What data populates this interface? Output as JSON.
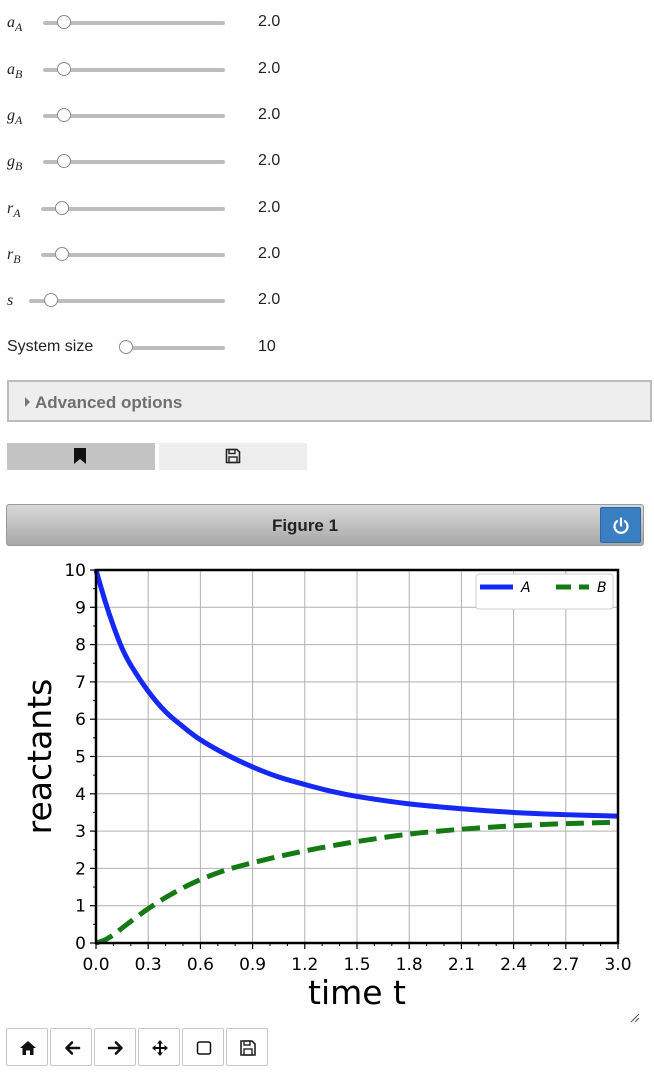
{
  "sliders": [
    {
      "label": "aA",
      "sub": "A",
      "main": "a",
      "value": "2.0",
      "fraction": 0.11
    },
    {
      "label": "aB",
      "sub": "B",
      "main": "a",
      "value": "2.0",
      "fraction": 0.11
    },
    {
      "label": "gA",
      "sub": "A",
      "main": "g",
      "value": "2.0",
      "fraction": 0.11
    },
    {
      "label": "gB",
      "sub": "B",
      "main": "g",
      "value": "2.0",
      "fraction": 0.11
    },
    {
      "label": "rA",
      "sub": "A",
      "main": "r",
      "value": "2.0",
      "fraction": 0.11
    },
    {
      "label": "rB",
      "sub": "B",
      "main": "r",
      "value": "2.0",
      "fraction": 0.11
    },
    {
      "label": "s",
      "sub": "",
      "main": "s",
      "value": "2.0",
      "fraction": 0.11
    },
    {
      "label": "System size",
      "value": "10",
      "fraction": 0.0
    }
  ],
  "advanced": {
    "label": "Advanced options"
  },
  "toggles": [
    {
      "icon": "bookmark-icon",
      "selected": true
    },
    {
      "icon": "save-icon",
      "selected": false
    }
  ],
  "figure": {
    "title": "Figure 1"
  },
  "colors": {
    "A": "#1528f4",
    "B": "#147a14",
    "power": "#3a7fc1"
  },
  "chart_data": {
    "type": "line",
    "xlabel": "time t",
    "ylabel": "reactants",
    "xlim": [
      0.0,
      3.0
    ],
    "ylim": [
      0,
      10
    ],
    "xticks": [
      "0.0",
      "0.3",
      "0.6",
      "0.9",
      "1.2",
      "1.5",
      "1.8",
      "2.1",
      "2.4",
      "2.7",
      "3.0"
    ],
    "yticks": [
      "0",
      "1",
      "2",
      "3",
      "4",
      "5",
      "6",
      "7",
      "8",
      "9",
      "10"
    ],
    "grid": true,
    "legend": "top-right",
    "x": [
      0.0,
      0.05,
      0.1,
      0.15,
      0.2,
      0.3,
      0.4,
      0.5,
      0.6,
      0.75,
      0.9,
      1.05,
      1.2,
      1.35,
      1.5,
      1.8,
      2.1,
      2.4,
      2.7,
      3.0
    ],
    "series": [
      {
        "name": "A",
        "style": "solid",
        "values": [
          10.0,
          9.2,
          8.5,
          7.9,
          7.45,
          6.75,
          6.2,
          5.8,
          5.45,
          5.05,
          4.72,
          4.45,
          4.25,
          4.07,
          3.93,
          3.73,
          3.6,
          3.5,
          3.44,
          3.4
        ]
      },
      {
        "name": "B",
        "style": "dashed",
        "values": [
          0.0,
          0.08,
          0.22,
          0.4,
          0.58,
          0.92,
          1.22,
          1.48,
          1.7,
          1.96,
          2.15,
          2.32,
          2.47,
          2.6,
          2.72,
          2.92,
          3.05,
          3.14,
          3.2,
          3.24
        ]
      }
    ]
  },
  "toolbar": [
    {
      "name": "home-button",
      "icon": "home-icon"
    },
    {
      "name": "back-button",
      "icon": "arrow-left-icon"
    },
    {
      "name": "forward-button",
      "icon": "arrow-right-icon"
    },
    {
      "name": "pan-button",
      "icon": "move-icon"
    },
    {
      "name": "zoom-button",
      "icon": "square-icon"
    },
    {
      "name": "download-button",
      "icon": "save-icon"
    }
  ]
}
